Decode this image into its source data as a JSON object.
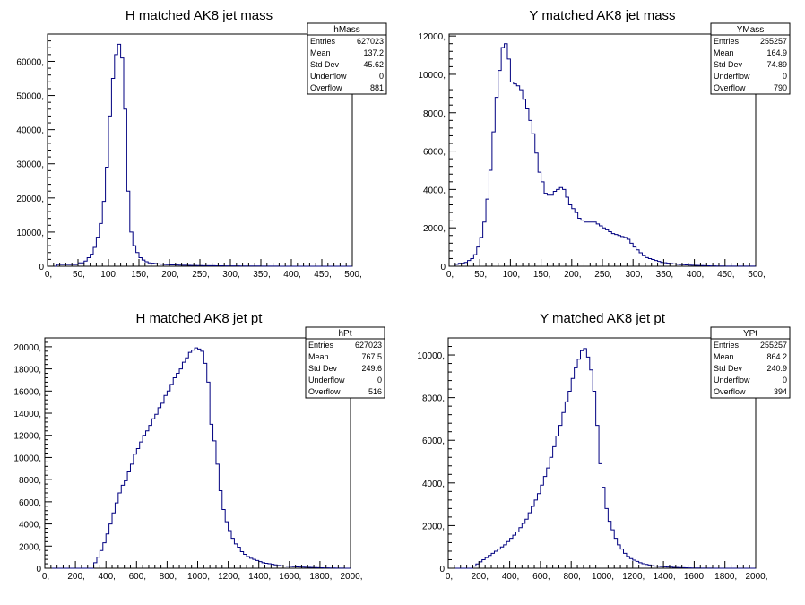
{
  "chart_data": [
    {
      "type": "histogram",
      "title": "H matched AK8 jet mass",
      "stats": {
        "name": "hMass",
        "rows": [
          {
            "label": "Entries",
            "value": "627023"
          },
          {
            "label": "Mean",
            "value": "137.2"
          },
          {
            "label": "Std Dev",
            "value": "45.62"
          },
          {
            "label": "Underflow",
            "value": "0"
          },
          {
            "label": "Overflow",
            "value": "881"
          }
        ]
      },
      "xlim": [
        0,
        500
      ],
      "ylim": [
        0,
        68000
      ],
      "x_ticks": [
        0,
        50,
        100,
        150,
        200,
        250,
        300,
        350,
        400,
        450,
        500
      ],
      "x_tick_labels": [
        "0,",
        "50,",
        "100,",
        "150,",
        "200,",
        "250,",
        "300,",
        "350,",
        "400,",
        "450,",
        "500,"
      ],
      "y_ticks": [
        0,
        10000,
        20000,
        30000,
        40000,
        50000,
        60000
      ],
      "y_tick_labels": [
        "0",
        "10000,",
        "20000,",
        "30000,",
        "40000,",
        "50000,",
        "60000,"
      ],
      "bin_width": 5,
      "values": [
        0,
        0,
        0,
        500,
        500,
        500,
        500,
        500,
        500,
        500,
        1000,
        1000,
        1500,
        2500,
        3500,
        5500,
        8500,
        12500,
        19000,
        29000,
        44000,
        55000,
        62000,
        65000,
        61000,
        46000,
        22000,
        10000,
        6000,
        4000,
        2500,
        1800,
        1300,
        1000,
        900,
        800,
        700,
        600,
        500,
        450,
        400,
        380,
        350,
        320,
        300,
        280,
        260,
        240,
        220,
        200,
        190,
        180,
        170,
        160,
        150,
        140,
        130,
        120,
        110,
        100,
        95,
        90,
        85,
        80,
        75,
        70,
        65,
        60,
        55,
        50,
        45,
        40,
        35,
        30,
        25,
        20,
        15,
        10,
        5,
        5,
        5,
        5,
        5,
        5,
        5,
        5,
        0,
        0,
        0,
        0,
        0,
        0,
        0,
        0,
        0,
        0,
        0,
        0,
        0,
        0
      ]
    },
    {
      "type": "histogram",
      "title": "Y matched AK8 jet mass",
      "stats": {
        "name": "YMass",
        "rows": [
          {
            "label": "Entries",
            "value": "255257"
          },
          {
            "label": "Mean",
            "value": "164.9"
          },
          {
            "label": "Std Dev",
            "value": "74.89"
          },
          {
            "label": "Underflow",
            "value": "0"
          },
          {
            "label": "Overflow",
            "value": "790"
          }
        ]
      },
      "xlim": [
        0,
        500
      ],
      "ylim": [
        0,
        12100
      ],
      "x_ticks": [
        0,
        50,
        100,
        150,
        200,
        250,
        300,
        350,
        400,
        450,
        500
      ],
      "x_tick_labels": [
        "0,",
        "50,",
        "100,",
        "150,",
        "200,",
        "250,",
        "300,",
        "350,",
        "400,",
        "450,",
        "500,"
      ],
      "y_ticks": [
        0,
        2000,
        4000,
        6000,
        8000,
        10000,
        12000
      ],
      "y_tick_labels": [
        "0",
        "2000,",
        "4000,",
        "6000,",
        "8000,",
        "10000,",
        "12000,"
      ],
      "bin_width": 5,
      "values": [
        0,
        0,
        100,
        150,
        150,
        200,
        300,
        400,
        600,
        1000,
        1500,
        2300,
        3500,
        5000,
        7000,
        8800,
        10200,
        11400,
        11600,
        10800,
        9600,
        9500,
        9400,
        9200,
        8700,
        8200,
        7600,
        6900,
        5900,
        4900,
        4400,
        3800,
        3700,
        3700,
        3900,
        4000,
        4100,
        4000,
        3600,
        3200,
        3000,
        2800,
        2500,
        2400,
        2300,
        2300,
        2300,
        2300,
        2200,
        2100,
        2000,
        1900,
        1800,
        1700,
        1650,
        1600,
        1550,
        1500,
        1400,
        1200,
        1000,
        850,
        700,
        550,
        450,
        400,
        350,
        300,
        250,
        200,
        180,
        160,
        140,
        120,
        100,
        90,
        80,
        70,
        60,
        50,
        45,
        40,
        35,
        30,
        25,
        20,
        15,
        10,
        10,
        10,
        5,
        5,
        5,
        5,
        5,
        5,
        5,
        5,
        5,
        5
      ]
    },
    {
      "type": "histogram",
      "title": "H matched AK8 jet pt",
      "stats": {
        "name": "hPt",
        "rows": [
          {
            "label": "Entries",
            "value": "627023"
          },
          {
            "label": "Mean",
            "value": "767.5"
          },
          {
            "label": "Std Dev",
            "value": "249.6"
          },
          {
            "label": "Underflow",
            "value": "0"
          },
          {
            "label": "Overflow",
            "value": "516"
          }
        ]
      },
      "xlim": [
        0,
        2000
      ],
      "ylim": [
        0,
        20800
      ],
      "x_ticks": [
        0,
        200,
        400,
        600,
        800,
        1000,
        1200,
        1400,
        1600,
        1800,
        2000
      ],
      "x_tick_labels": [
        "0,",
        "200,",
        "400,",
        "600,",
        "800,",
        "1000,",
        "1200,",
        "1400,",
        "1600,",
        "1800,",
        "2000,"
      ],
      "y_ticks": [
        0,
        2000,
        4000,
        6000,
        8000,
        10000,
        12000,
        14000,
        16000,
        18000,
        20000
      ],
      "y_tick_labels": [
        "0",
        "2000,",
        "4000,",
        "6000,",
        "8000,",
        "10000,",
        "12000,",
        "14000,",
        "16000,",
        "18000,",
        "20000,"
      ],
      "bin_width": 20,
      "values": [
        0,
        0,
        0,
        0,
        0,
        0,
        0,
        0,
        0,
        0,
        0,
        0,
        0,
        0,
        0,
        0,
        500,
        1000,
        1600,
        2300,
        3100,
        4000,
        5000,
        5900,
        6800,
        7500,
        7900,
        8700,
        9400,
        10300,
        10800,
        11400,
        12000,
        12400,
        12900,
        13500,
        13900,
        14500,
        14900,
        15600,
        16000,
        16600,
        17200,
        17600,
        18000,
        18600,
        19000,
        19500,
        19700,
        19900,
        19800,
        19600,
        18500,
        16800,
        13000,
        11500,
        9400,
        7000,
        5300,
        4200,
        3400,
        2700,
        2200,
        1900,
        1500,
        1250,
        1050,
        900,
        800,
        700,
        600,
        500,
        450,
        400,
        350,
        300,
        250,
        220,
        200,
        180,
        160,
        140,
        120,
        110,
        100,
        90,
        80,
        70,
        60,
        50,
        40,
        35,
        30,
        25,
        20,
        15,
        10,
        10,
        5,
        5
      ]
    },
    {
      "type": "histogram",
      "title": "Y matched AK8 jet pt",
      "stats": {
        "name": "YPt",
        "rows": [
          {
            "label": "Entries",
            "value": "255257"
          },
          {
            "label": "Mean",
            "value": "864.2"
          },
          {
            "label": "Std Dev",
            "value": "240.9"
          },
          {
            "label": "Underflow",
            "value": "0"
          },
          {
            "label": "Overflow",
            "value": "394"
          }
        ]
      },
      "xlim": [
        0,
        2000
      ],
      "ylim": [
        0,
        10800
      ],
      "x_ticks": [
        0,
        200,
        400,
        600,
        800,
        1000,
        1200,
        1400,
        1600,
        1800,
        2000
      ],
      "x_tick_labels": [
        "0,",
        "200,",
        "400,",
        "600,",
        "800,",
        "1000,",
        "1200,",
        "1400,",
        "1600,",
        "1800,",
        "2000,"
      ],
      "y_ticks": [
        0,
        2000,
        4000,
        6000,
        8000,
        10000
      ],
      "y_tick_labels": [
        "0",
        "2000,",
        "4000,",
        "6000,",
        "8000,",
        "10000,"
      ],
      "bin_width": 20,
      "values": [
        0,
        0,
        0,
        0,
        0,
        0,
        0,
        0,
        100,
        200,
        300,
        400,
        500,
        600,
        700,
        800,
        900,
        1000,
        1100,
        1250,
        1400,
        1550,
        1700,
        1900,
        2100,
        2300,
        2600,
        2900,
        3200,
        3500,
        3900,
        4300,
        4700,
        5200,
        5700,
        6200,
        6700,
        7300,
        7800,
        8300,
        8900,
        9400,
        9800,
        10200,
        10300,
        9900,
        9300,
        8300,
        6700,
        4900,
        3800,
        2800,
        2200,
        1800,
        1400,
        1100,
        900,
        700,
        550,
        450,
        380,
        320,
        260,
        210,
        180,
        150,
        120,
        100,
        90,
        80,
        70,
        60,
        50,
        40,
        35,
        30,
        25,
        20,
        15,
        12,
        10,
        8,
        6,
        5,
        5,
        5,
        0,
        0,
        0,
        0,
        0,
        0,
        0,
        0,
        0,
        0,
        0,
        0,
        0,
        0
      ]
    }
  ]
}
